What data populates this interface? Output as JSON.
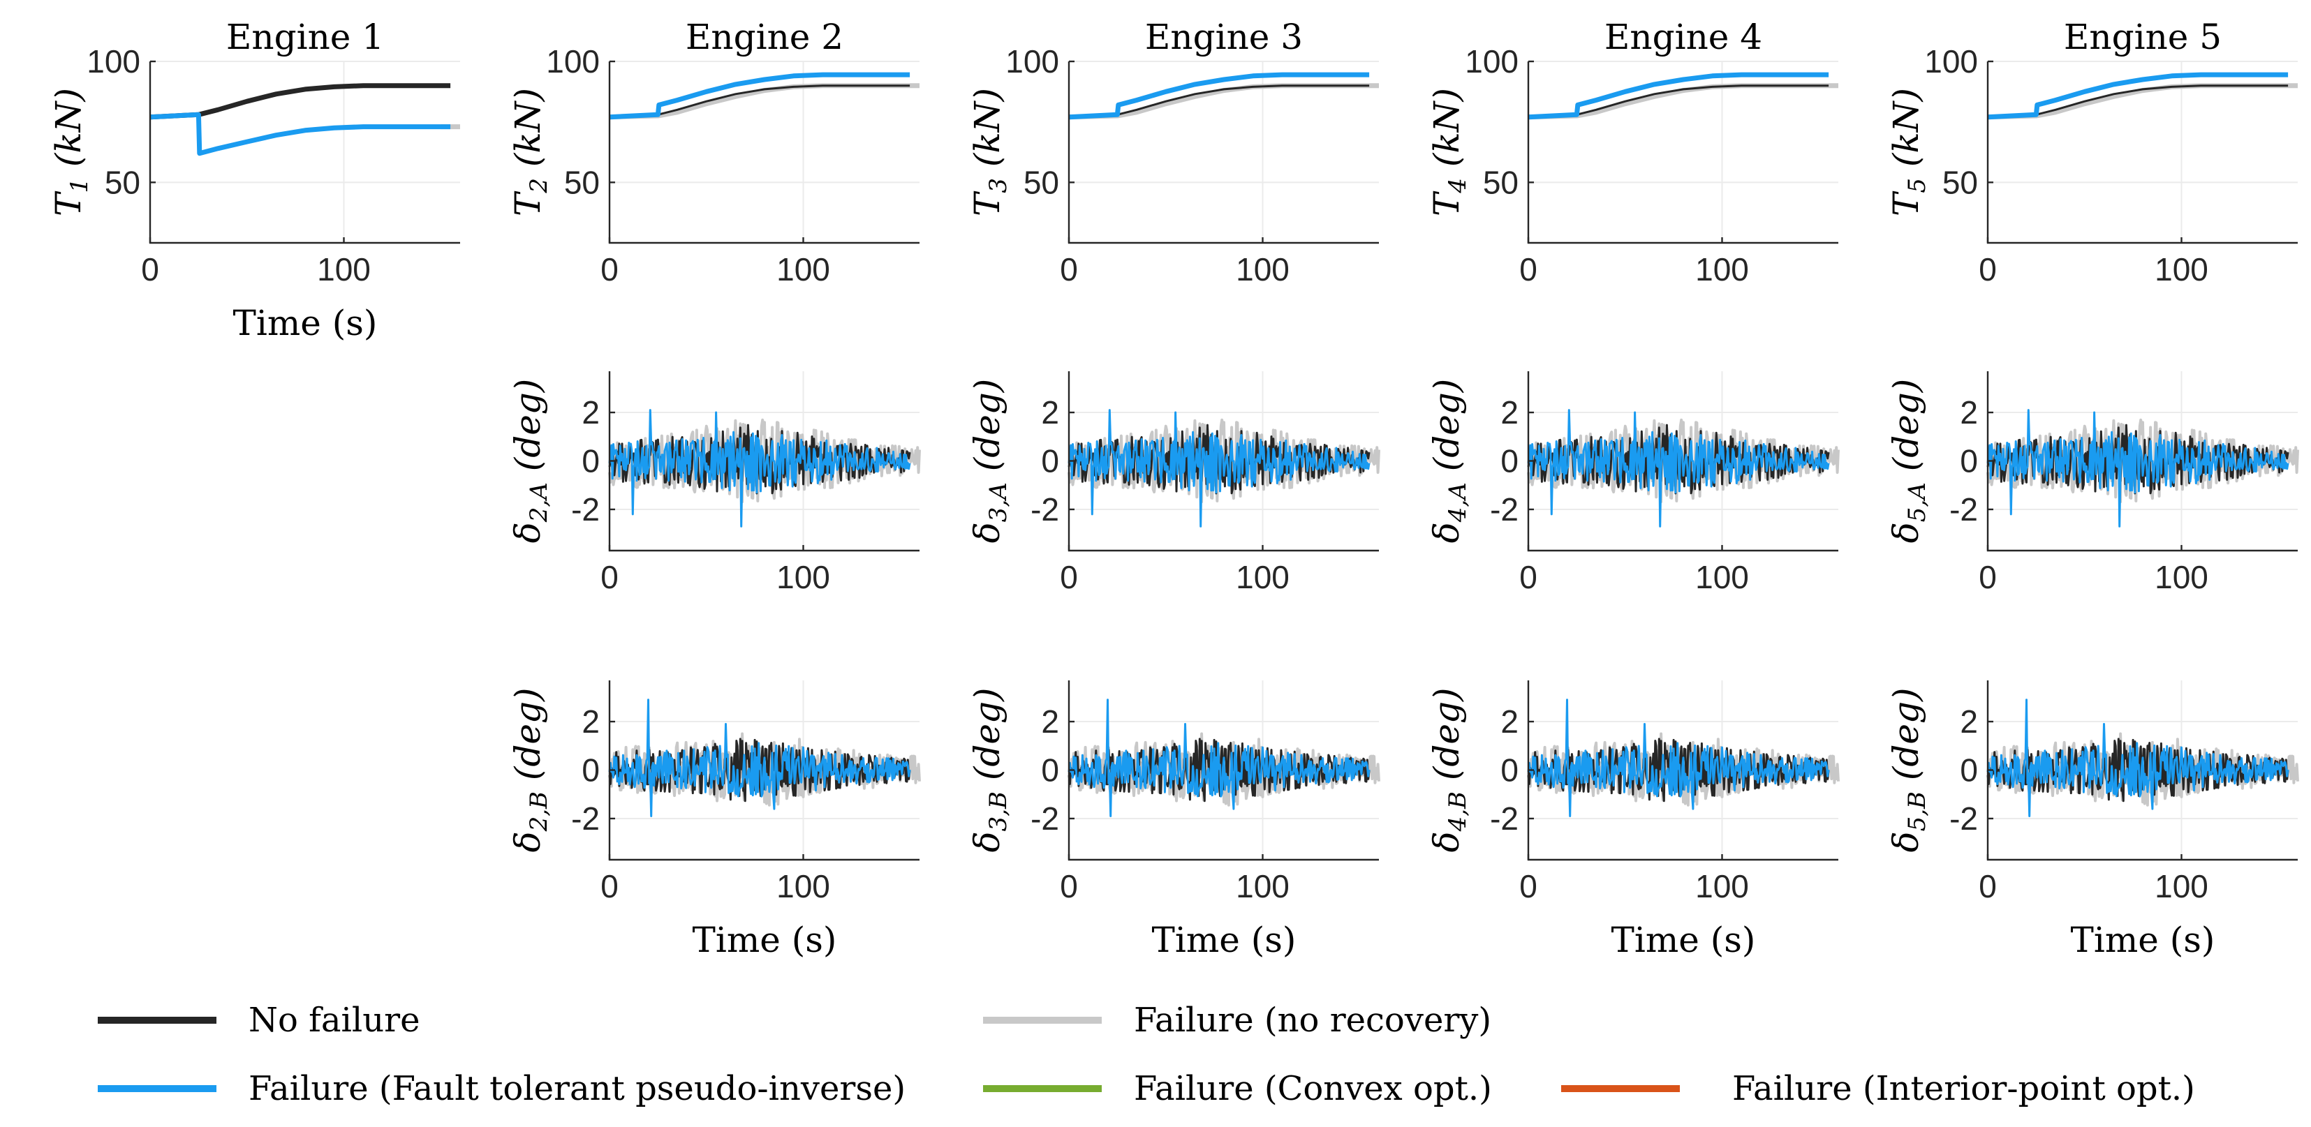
{
  "chart_data": {
    "type": "line",
    "time": {
      "start": 0,
      "end": 155,
      "failure_at": 25
    },
    "series": [
      {
        "key": "no_failure",
        "name": "No failure",
        "color": "#262626"
      },
      {
        "key": "no_recovery",
        "name": "Failure (no recovery)",
        "color": "#c8c8c8"
      },
      {
        "key": "ft_pinv",
        "name": "Failure (Fault tolerant pseudo-inverse)",
        "color": "#1a9bf0"
      },
      {
        "key": "convex",
        "name": "Failure (Convex opt.)",
        "color": "#77ac30"
      },
      {
        "key": "interior",
        "name": "Failure (Interior-point opt.)",
        "color": "#d95319"
      }
    ],
    "columns": [
      {
        "title": "Engine 1",
        "thrust_label": "T1 (kN)"
      },
      {
        "title": "Engine 2",
        "thrust_label": "T2 (kN)",
        "delta_a_label": "δ2,A (deg)",
        "delta_b_label": "δ2,B (deg)"
      },
      {
        "title": "Engine 3",
        "thrust_label": "T3 (kN)",
        "delta_a_label": "δ3,A (deg)",
        "delta_b_label": "δ3,B (deg)"
      },
      {
        "title": "Engine 4",
        "thrust_label": "T4 (kN)",
        "delta_a_label": "δ4,A (deg)",
        "delta_b_label": "δ4,B (deg)"
      },
      {
        "title": "Engine 5",
        "thrust_label": "T5 (kN)",
        "delta_a_label": "δ5,A (deg)",
        "delta_b_label": "δ5,B (deg)"
      }
    ],
    "thrust_axes": {
      "xlim": [
        0,
        160
      ],
      "ylim": [
        25,
        100
      ],
      "xticks": [
        0,
        100
      ],
      "yticks": [
        50,
        100
      ],
      "xticklabels": [
        "0",
        "100"
      ],
      "yticklabels": [
        "50",
        "100"
      ]
    },
    "delta_axes": {
      "xlim": [
        0,
        160
      ],
      "ylim": [
        -3.7,
        3.7
      ],
      "xticks": [
        0,
        100
      ],
      "yticks": [
        -2,
        0,
        2
      ],
      "xticklabels": [
        "0",
        "100"
      ],
      "yticklabels": [
        "-2",
        "0",
        "2"
      ]
    },
    "xlabel": "Time (s)",
    "thrust_engine1": {
      "no_failure": {
        "x": [
          0,
          25,
          35,
          50,
          65,
          80,
          95,
          110,
          125,
          155
        ],
        "y": [
          77,
          78,
          80,
          83.5,
          86.5,
          88.5,
          89.5,
          90,
          90,
          90
        ]
      },
      "ft_pinv": {
        "x": [
          0,
          25,
          25.5,
          35,
          50,
          65,
          80,
          95,
          110,
          125,
          155
        ],
        "y": [
          77,
          78,
          62,
          64,
          66.8,
          69.5,
          71.5,
          72.5,
          73,
          73,
          73
        ]
      },
      "no_recovery": {
        "x": [
          150,
          160
        ],
        "y": [
          73,
          73
        ]
      }
    },
    "thrust_healthy": {
      "no_failure": {
        "x": [
          0,
          25,
          35,
          50,
          65,
          80,
          95,
          110,
          125,
          155
        ],
        "y": [
          77,
          78,
          80,
          83.5,
          86.5,
          88.5,
          89.5,
          90,
          90,
          90
        ]
      },
      "no_recovery": {
        "x": [
          0,
          25,
          35,
          50,
          65,
          80,
          95,
          110,
          125,
          160
        ],
        "y": [
          77,
          77.5,
          79,
          82.5,
          85.5,
          88,
          89.5,
          90,
          90,
          90
        ]
      },
      "ft_pinv": {
        "x": [
          0,
          25,
          25.5,
          35,
          50,
          65,
          80,
          95,
          110,
          125,
          155
        ],
        "y": [
          77,
          78,
          82,
          84,
          87.5,
          90.5,
          92.5,
          94,
          94.5,
          94.5,
          94.5
        ]
      }
    },
    "deflection_A": {
      "envelope_t": [
        0,
        20,
        40,
        60,
        70,
        80,
        100,
        120,
        140,
        155
      ],
      "envelope_amp": [
        0.9,
        1.0,
        1.1,
        1.4,
        1.6,
        1.5,
        1.2,
        0.9,
        0.6,
        0.5
      ],
      "spikes": [
        {
          "t": 21,
          "value": 2.1
        },
        {
          "t": 12,
          "value": -2.2
        },
        {
          "t": 68,
          "value": -2.7
        },
        {
          "t": 55,
          "value": 2.0
        }
      ]
    },
    "deflection_B": {
      "envelope_t": [
        0,
        20,
        40,
        60,
        70,
        80,
        100,
        120,
        140,
        155
      ],
      "envelope_amp": [
        0.8,
        0.9,
        1.0,
        1.3,
        1.4,
        1.3,
        1.1,
        0.8,
        0.6,
        0.5
      ],
      "spikes": [
        {
          "t": 20,
          "value": 2.9
        },
        {
          "t": 21.5,
          "value": -1.9
        },
        {
          "t": 60,
          "value": 1.9
        },
        {
          "t": 85,
          "value": -1.6
        }
      ]
    }
  }
}
